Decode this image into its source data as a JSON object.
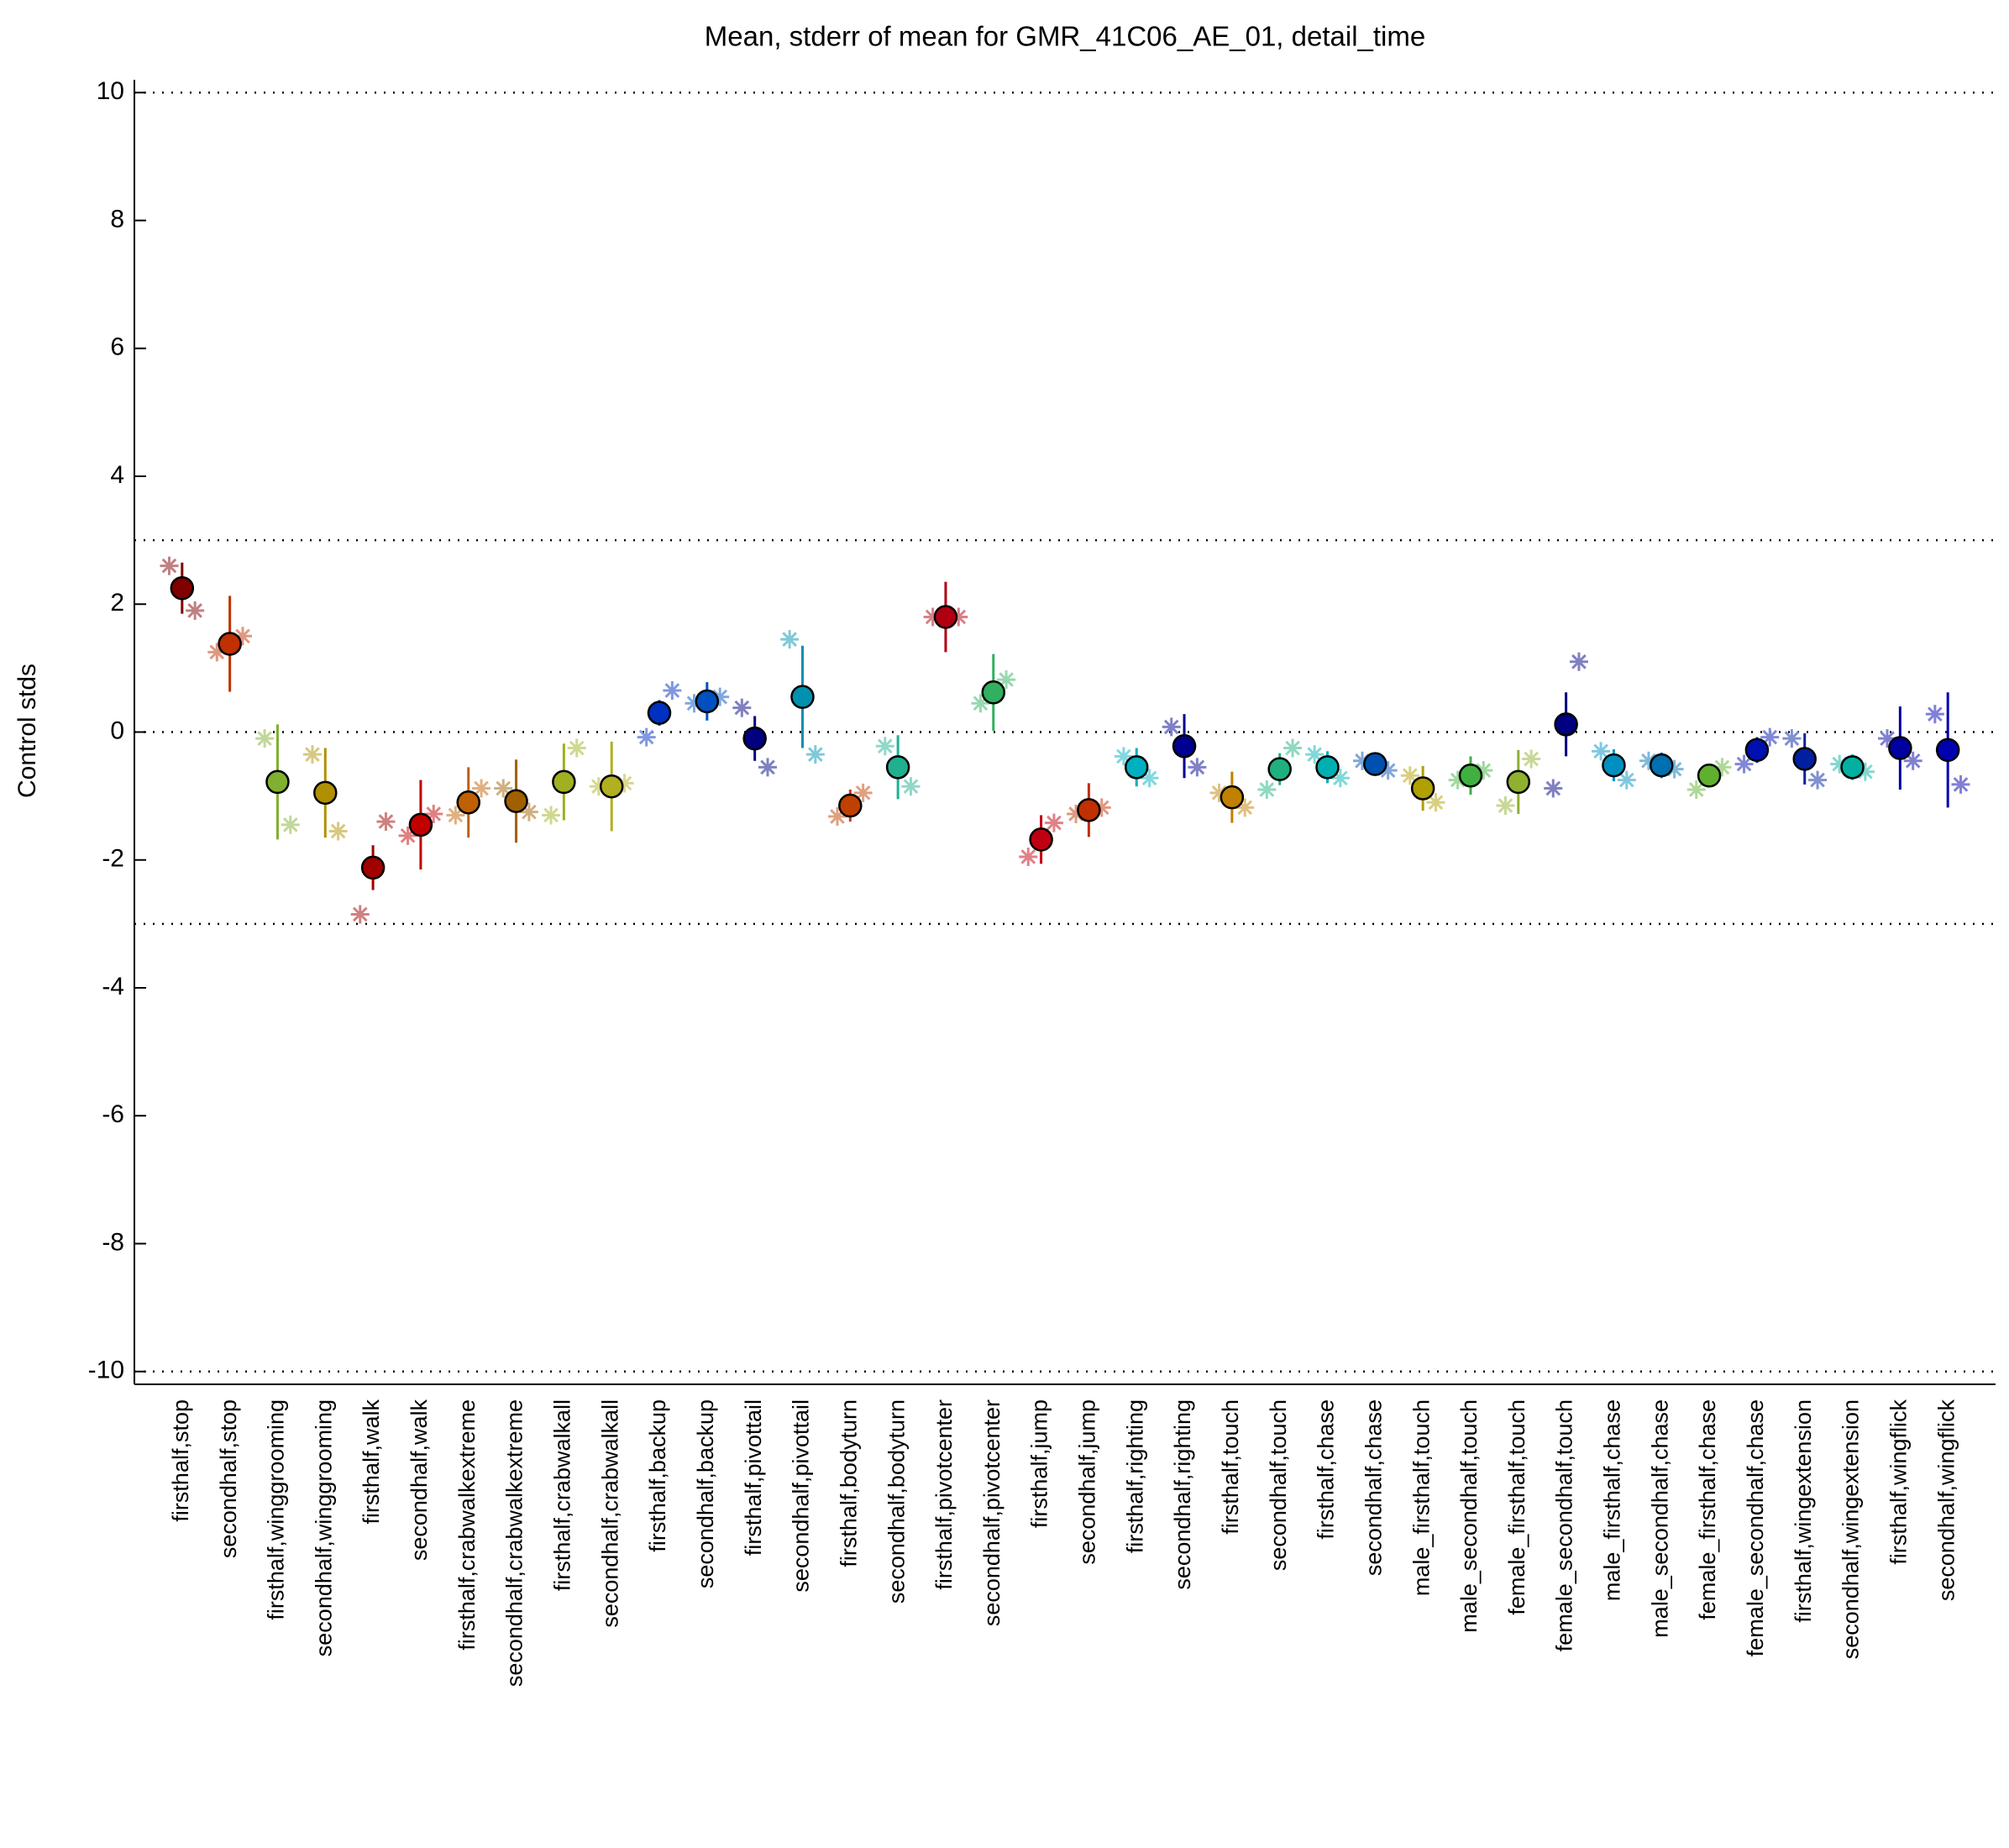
{
  "chart_data": {
    "type": "errorbar",
    "title": "Mean, stderr of mean for GMR_41C06_AE_01, detail_time",
    "ylabel": "Control stds",
    "categories": [
      "firsthalf,stop",
      "secondhalf,stop",
      "firsthalf,winggrooming",
      "secondhalf,winggrooming",
      "firsthalf,walk",
      "secondhalf,walk",
      "firsthalf,crabwalkextreme",
      "secondhalf,crabwalkextreme",
      "firsthalf,crabwalkall",
      "secondhalf,crabwalkall",
      "firsthalf,backup",
      "secondhalf,backup",
      "firsthalf,pivottail",
      "secondhalf,pivottail",
      "firsthalf,bodyturn",
      "secondhalf,bodyturn",
      "firsthalf,pivotcenter",
      "secondhalf,pivotcenter",
      "firsthalf,jump",
      "secondhalf,jump",
      "firsthalf,righting",
      "secondhalf,righting",
      "firsthalf,touch",
      "secondhalf,touch",
      "firsthalf,chase",
      "secondhalf,chase",
      "male_firsthalf,touch",
      "male_secondhalf,touch",
      "female_firsthalf,touch",
      "female_secondhalf,touch",
      "male_firsthalf,chase",
      "male_secondhalf,chase",
      "female_firsthalf,chase",
      "female_secondhalf,chase",
      "firsthalf,wingextension",
      "secondhalf,wingextension",
      "firsthalf,wingflick",
      "secondhalf,wingflick"
    ],
    "values": [
      2.25,
      1.38,
      -0.78,
      -0.95,
      -2.12,
      -1.45,
      -1.1,
      -1.08,
      -0.78,
      -0.85,
      0.3,
      0.48,
      -0.1,
      0.55,
      -1.15,
      -0.55,
      1.8,
      0.62,
      -1.68,
      -1.22,
      -0.55,
      -0.22,
      -1.02,
      -0.58,
      -0.55,
      -0.5,
      -0.88,
      -0.68,
      -0.78,
      0.12,
      -0.52,
      -0.52,
      -0.68,
      -0.28,
      -0.42,
      -0.55,
      -0.25,
      -0.28
    ],
    "errors": [
      0.4,
      0.75,
      0.9,
      0.7,
      0.35,
      0.7,
      0.55,
      0.65,
      0.6,
      0.7,
      0.2,
      0.3,
      0.35,
      0.8,
      0.25,
      0.5,
      0.55,
      0.6,
      0.38,
      0.42,
      0.3,
      0.5,
      0.4,
      0.25,
      0.25,
      0.15,
      0.35,
      0.3,
      0.5,
      0.5,
      0.25,
      0.2,
      0.12,
      0.2,
      0.4,
      0.2,
      0.65,
      0.9
    ],
    "replicates_left": [
      2.6,
      1.25,
      -0.1,
      -0.35,
      -2.85,
      -1.62,
      -1.3,
      -0.88,
      -1.3,
      -0.85,
      -0.08,
      0.45,
      0.38,
      1.45,
      -1.32,
      -0.22,
      1.8,
      0.45,
      -1.95,
      -1.28,
      -0.38,
      0.08,
      -0.95,
      -0.9,
      -0.35,
      -0.45,
      -0.68,
      -0.75,
      -1.15,
      -0.88,
      -0.3,
      -0.45,
      -0.9,
      -0.5,
      -0.1,
      -0.5,
      -0.1,
      0.28
    ],
    "replicates_right": [
      1.9,
      1.5,
      -1.45,
      -1.55,
      -1.4,
      -1.28,
      -0.88,
      -1.25,
      -0.25,
      -0.8,
      0.65,
      0.55,
      -0.55,
      -0.35,
      -0.95,
      -0.85,
      1.8,
      0.82,
      -1.42,
      -1.18,
      -0.72,
      -0.55,
      -1.18,
      -0.25,
      -0.72,
      -0.6,
      -1.1,
      -0.6,
      -0.42,
      1.1,
      -0.75,
      -0.58,
      -0.55,
      -0.08,
      -0.75,
      -0.62,
      -0.45,
      -0.82
    ],
    "colors": [
      "#800000",
      "#c03000",
      "#80b030",
      "#b09000",
      "#a00000",
      "#c00000",
      "#c06000",
      "#a06000",
      "#a0b020",
      "#b0b020",
      "#0030c0",
      "#0050c0",
      "#000080",
      "#0090b0",
      "#c04000",
      "#20b090",
      "#b00010",
      "#30b060",
      "#c00010",
      "#c03000",
      "#00b0c0",
      "#000090",
      "#c08000",
      "#20b080",
      "#00b0b0",
      "#0050b0",
      "#b0a000",
      "#40b040",
      "#90b030",
      "#000080",
      "#0090c0",
      "#0070b0",
      "#60b030",
      "#0010b0",
      "#0020a0",
      "#00b0a0",
      "#0000a0",
      "#0000b0"
    ],
    "ylim": [
      -10.2,
      10.2
    ],
    "yticks": [
      -10,
      -8,
      -6,
      -4,
      -2,
      0,
      2,
      4,
      6,
      8,
      10
    ],
    "hlines": [
      -10,
      -3,
      0,
      3,
      10
    ]
  }
}
